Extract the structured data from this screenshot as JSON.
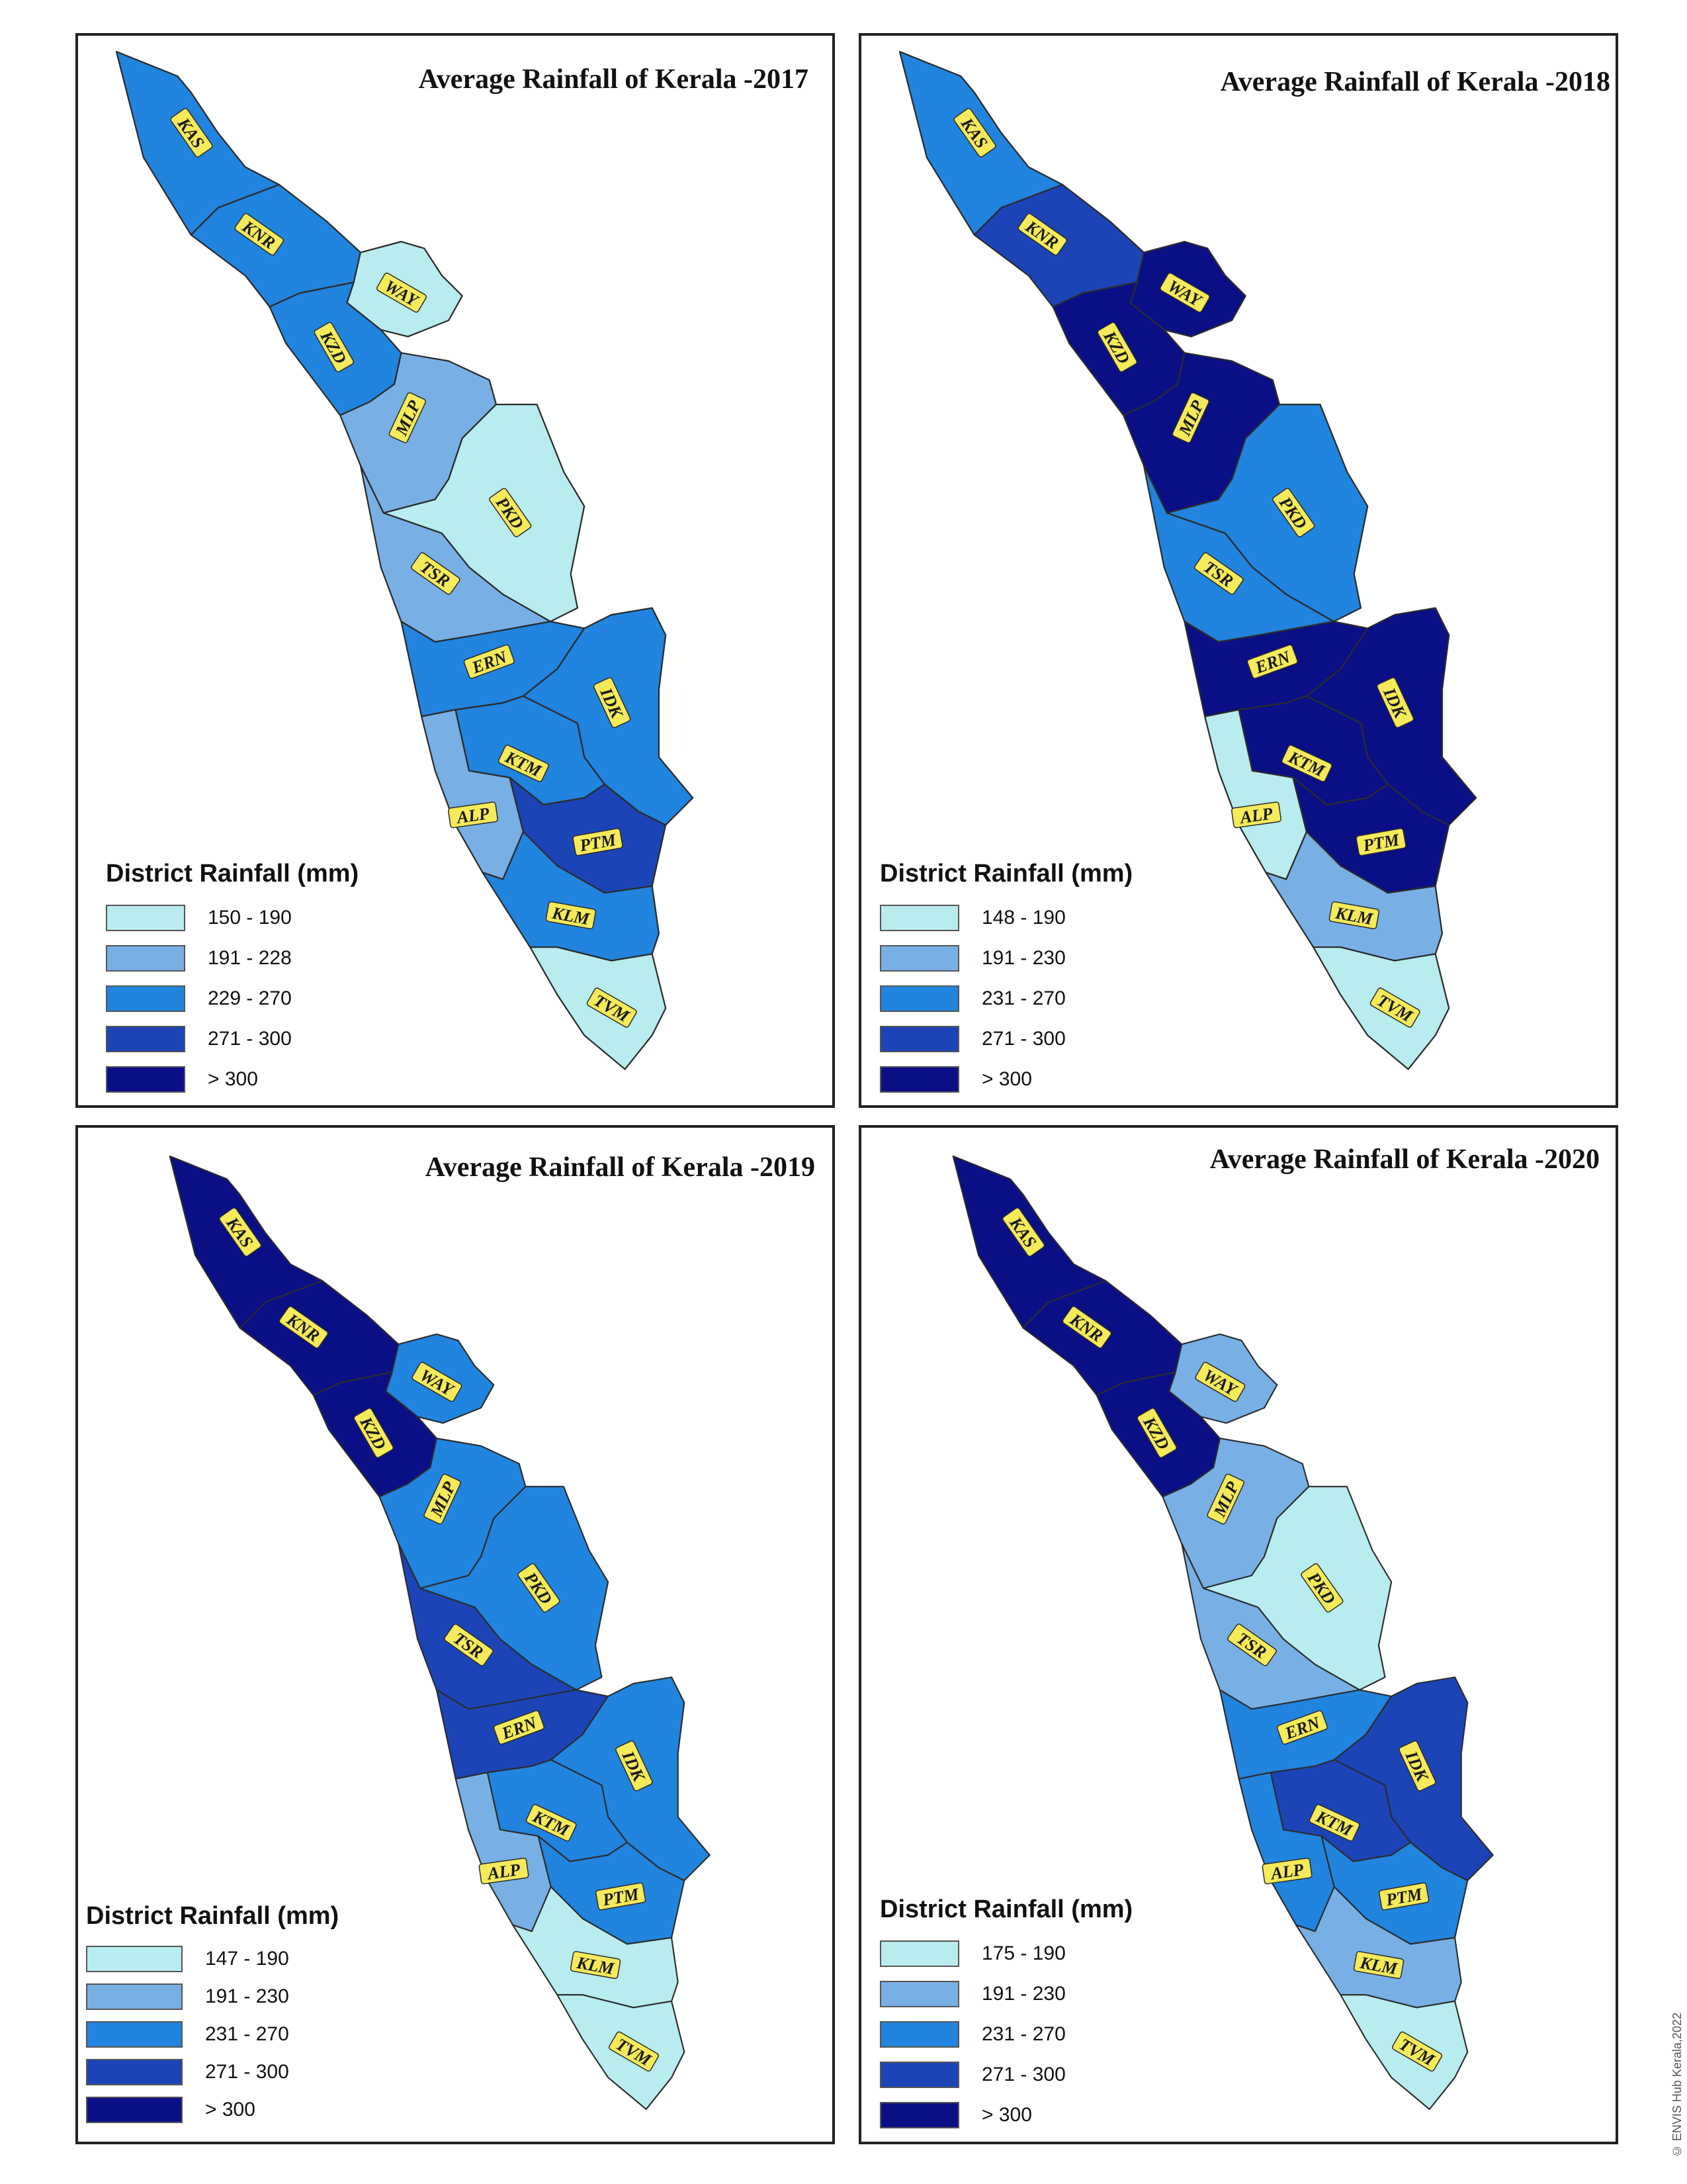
{
  "colors": {
    "c1": "#b9ecef",
    "c2": "#78b0e6",
    "c3": "#2184de",
    "c4": "#1c44b6",
    "c5": "#0a0f86",
    "border": "#2b2b2b",
    "label_bg": "#f5ea5a"
  },
  "legend_title": "District Rainfall (mm)",
  "panels": [
    {
      "title": "Average Rainfall of Kerala -2017",
      "legend": [
        "150 - 190",
        "191 - 228",
        "229 - 270",
        "271 - 300",
        ">  300"
      ],
      "classes": {
        "KAS": 3,
        "KNR": 3,
        "WAY": 1,
        "KZD": 3,
        "MLP": 2,
        "PKD": 1,
        "TSR": 2,
        "ERN": 3,
        "IDK": 3,
        "KTM": 3,
        "ALP": 2,
        "PTM": 4,
        "KLM": 3,
        "TVM": 1
      }
    },
    {
      "title": "Average Rainfall of Kerala -2018",
      "legend": [
        "148 - 190",
        "191 - 230",
        "231 - 270",
        "271 - 300",
        "> 300"
      ],
      "classes": {
        "KAS": 3,
        "KNR": 4,
        "WAY": 5,
        "KZD": 5,
        "MLP": 5,
        "PKD": 3,
        "TSR": 3,
        "ERN": 5,
        "IDK": 5,
        "KTM": 5,
        "ALP": 1,
        "PTM": 5,
        "KLM": 2,
        "TVM": 1
      }
    },
    {
      "title": "Average Rainfall of Kerala -2019",
      "legend": [
        "147 - 190",
        "191 - 230",
        "231 - 270",
        "271 - 300",
        "> 300"
      ],
      "classes": {
        "KAS": 5,
        "KNR": 5,
        "WAY": 3,
        "KZD": 5,
        "MLP": 3,
        "PKD": 3,
        "TSR": 4,
        "ERN": 4,
        "IDK": 3,
        "KTM": 3,
        "ALP": 2,
        "PTM": 3,
        "KLM": 1,
        "TVM": 1
      }
    },
    {
      "title": "Average Rainfall of Kerala -2020",
      "legend": [
        "175 - 190",
        "191 - 230",
        "231 - 270",
        "271 - 300",
        "> 300"
      ],
      "classes": {
        "KAS": 5,
        "KNR": 5,
        "WAY": 2,
        "KZD": 5,
        "MLP": 2,
        "PKD": 1,
        "TSR": 2,
        "ERN": 3,
        "IDK": 4,
        "KTM": 4,
        "ALP": 3,
        "PTM": 3,
        "KLM": 2,
        "TVM": 1
      }
    }
  ],
  "district_labels": [
    "KAS",
    "KNR",
    "WAY",
    "KZD",
    "MLP",
    "PKD",
    "TSR",
    "ERN",
    "IDK",
    "KTM",
    "ALP",
    "PTM",
    "KLM",
    "TVM"
  ],
  "credit": "© ENVIS Hub Kerala,2022"
}
